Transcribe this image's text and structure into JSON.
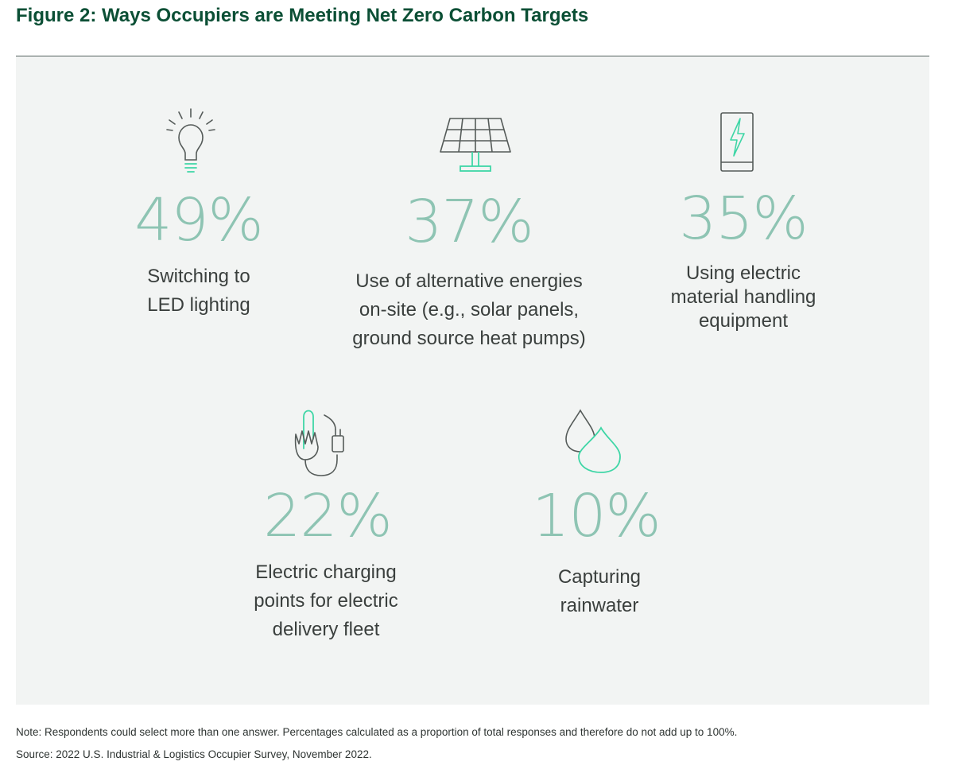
{
  "title": "Figure 2: Ways Occupiers are Meeting Net Zero Carbon Targets",
  "colors": {
    "title": "#0b4f35",
    "percent": "#8ec4b3",
    "icon_line": "#555b59",
    "icon_accent": "#3fd6a6",
    "panel_bg": "#f2f4f3"
  },
  "chart_data": {
    "type": "table",
    "title": "Figure 2: Ways Occupiers are Meeting Net Zero Carbon Targets",
    "unit": "%",
    "items": [
      {
        "value": 49,
        "value_label": "49%",
        "label_lines": [
          "Switching to",
          "LED lighting"
        ],
        "icon": "lightbulb-icon"
      },
      {
        "value": 37,
        "value_label": "37%",
        "label_lines": [
          "Use of alternative energies",
          "on-site (e.g., solar panels,",
          "ground source heat pumps)"
        ],
        "icon": "solar-panel-icon"
      },
      {
        "value": 35,
        "value_label": "35%",
        "label_lines": [
          "Using electric",
          "material handling",
          "equipment"
        ],
        "icon": "battery-icon"
      },
      {
        "value": 22,
        "value_label": "22%",
        "label_lines": [
          "Electric charging",
          "points for electric",
          "delivery fleet"
        ],
        "icon": "charging-plug-icon"
      },
      {
        "value": 10,
        "value_label": "10%",
        "label_lines": [
          "Capturing",
          "rainwater"
        ],
        "icon": "water-drops-icon"
      }
    ]
  },
  "footnote": {
    "note": "Note: Respondents could select more than one answer. Percentages calculated as a proportion of total responses and therefore do not add up to 100%.",
    "source": "Source: 2022 U.S. Industrial & Logistics Occupier Survey, November 2022."
  }
}
